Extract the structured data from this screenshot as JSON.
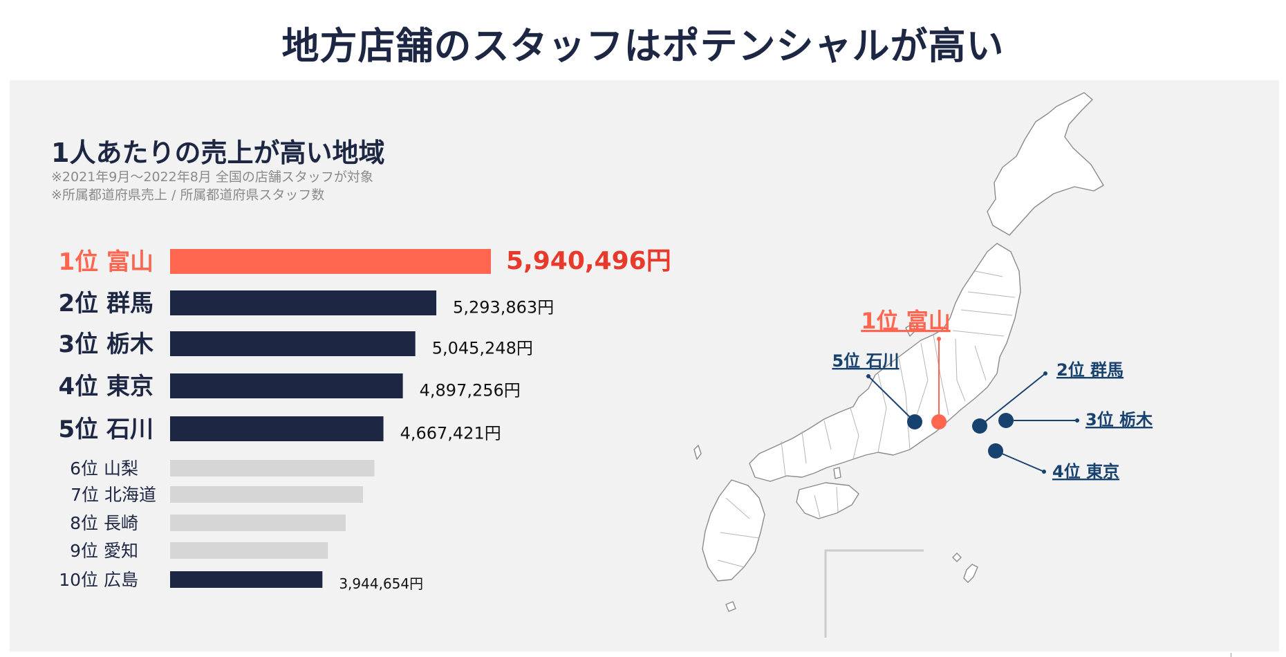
{
  "title": "地方店舗のスタッフはポテンシャルが高い",
  "chart_data": {
    "type": "bar",
    "orientation": "horizontal",
    "title": "1人あたりの売上が高い地域",
    "notes": [
      "※2021年9月〜2022年8月 全国の店舗スタッフが対象",
      "※所属都道府県売上 / 所属都道府県スタッフ数"
    ],
    "unit": "円",
    "categories": [
      "1位 富山",
      "2位 群馬",
      "3位 栃木",
      "4位 東京",
      "5位 石川",
      "6位 山梨",
      "7位 北海道",
      "8位 長崎",
      "9位 愛知",
      "10位 広島"
    ],
    "values": [
      5940496,
      5293863,
      5045248,
      4897256,
      4667421,
      4560000,
      4425000,
      4220000,
      4010000,
      3944654
    ],
    "value_labels": [
      "5,940,496円",
      "5,293,863円",
      "5,045,248円",
      "4,897,256円",
      "4,667,421円",
      "",
      "",
      "",
      "",
      "3,944,654円"
    ],
    "xlim": [
      2140000,
      5940496
    ],
    "colors": {
      "highlight": "#ff6650",
      "highlight_text": "#e8392a",
      "primary": "#1d2744",
      "secondary": "#d6d6d6"
    }
  },
  "map": {
    "markers": [
      {
        "label": "1位 富山",
        "color": "#ff6650",
        "highlight": true
      },
      {
        "label": "2位 群馬",
        "color": "#17416e"
      },
      {
        "label": "3位 栃木",
        "color": "#17416e"
      },
      {
        "label": "4位 東京",
        "color": "#17416e"
      },
      {
        "label": "5位 石川",
        "color": "#17416e"
      }
    ]
  }
}
